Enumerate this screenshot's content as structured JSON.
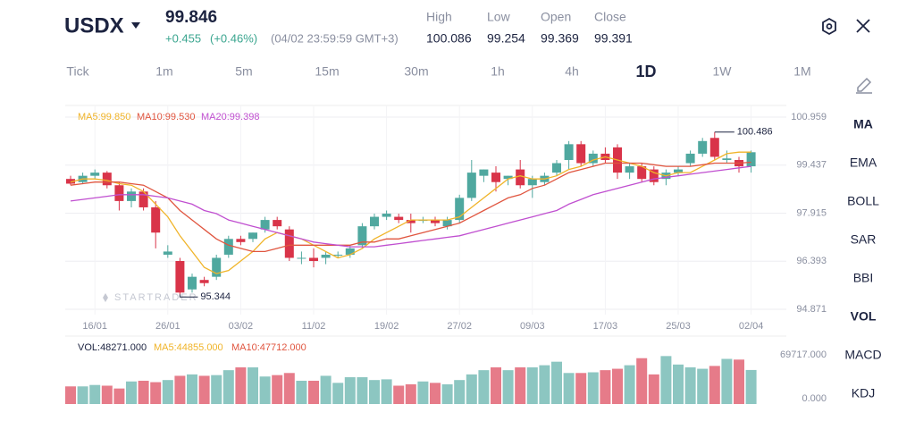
{
  "header": {
    "symbol": "USDX",
    "price": "99.846",
    "change": "+0.455",
    "change_pct": "(+0.46%)",
    "time": "(04/02 23:59:59 GMT+3)",
    "stats": [
      {
        "label": "High",
        "value": "100.086"
      },
      {
        "label": "Low",
        "value": "99.254"
      },
      {
        "label": "Open",
        "value": "99.369"
      },
      {
        "label": "Close",
        "value": "99.391"
      }
    ]
  },
  "timeframes": [
    "Tick",
    "1m",
    "5m",
    "15m",
    "30m",
    "1h",
    "4h",
    "1D",
    "1W",
    "1M"
  ],
  "selected_timeframe": "1D",
  "indicators": [
    "MA",
    "EMA",
    "BOLL",
    "SAR",
    "BBI",
    "VOL",
    "MACD",
    "KDJ"
  ],
  "active_indicators": [
    "MA",
    "VOL"
  ],
  "chart_data": [
    {
      "type": "candlestick",
      "watermark": "STARTRADER",
      "categories": [
        null,
        null,
        "16/01",
        null,
        null,
        null,
        null,
        null,
        "26/01",
        null,
        null,
        null,
        null,
        null,
        "03/02",
        null,
        null,
        null,
        null,
        null,
        "11/02",
        null,
        null,
        null,
        null,
        null,
        "19/02",
        null,
        null,
        null,
        null,
        null,
        "27/02",
        null,
        null,
        null,
        null,
        null,
        "09/03",
        null,
        null,
        null,
        null,
        null,
        "17/03",
        null,
        null,
        null,
        null,
        null,
        "25/03",
        null,
        null,
        null,
        null,
        null,
        "02/04"
      ],
      "open": [
        99.0,
        98.9,
        99.1,
        99.2,
        98.8,
        98.3,
        98.6,
        98.1,
        96.6,
        96.4,
        95.5,
        95.8,
        95.9,
        96.6,
        97.1,
        97.1,
        97.4,
        97.7,
        97.4,
        96.5,
        96.5,
        96.5,
        96.6,
        96.6,
        96.9,
        97.5,
        97.8,
        97.8,
        97.7,
        97.7,
        97.7,
        97.5,
        97.7,
        98.4,
        99.1,
        99.2,
        99.0,
        99.3,
        98.8,
        98.9,
        99.2,
        99.6,
        100.1,
        99.5,
        99.8,
        100.0,
        99.2,
        99.4,
        99.3,
        99.0,
        99.2,
        99.5,
        99.8,
        100.3,
        99.6,
        99.6,
        99.4
      ],
      "high": [
        99.1,
        99.2,
        99.3,
        99.25,
        98.9,
        98.7,
        98.7,
        98.3,
        96.9,
        96.5,
        96.0,
        95.9,
        96.6,
        97.2,
        97.2,
        97.3,
        97.8,
        97.8,
        97.5,
        96.7,
        96.8,
        96.7,
        96.7,
        96.9,
        97.6,
        97.9,
        98.0,
        97.9,
        97.9,
        97.8,
        97.8,
        97.8,
        98.5,
        99.6,
        99.3,
        99.4,
        99.1,
        99.6,
        99.1,
        99.2,
        99.6,
        100.2,
        100.2,
        99.9,
        100.0,
        100.1,
        99.5,
        99.5,
        99.4,
        99.3,
        99.4,
        99.9,
        100.3,
        100.486,
        99.9,
        99.7,
        99.9
      ],
      "low": [
        98.8,
        98.85,
        99.0,
        98.7,
        98.0,
        98.1,
        98.0,
        96.8,
        96.5,
        95.344,
        95.4,
        95.6,
        95.8,
        96.5,
        96.9,
        97.0,
        97.3,
        97.4,
        96.4,
        96.3,
        96.2,
        96.3,
        96.5,
        96.5,
        96.8,
        97.4,
        97.7,
        97.6,
        97.3,
        97.6,
        97.5,
        97.4,
        97.6,
        98.3,
        98.9,
        98.6,
        98.8,
        98.7,
        98.4,
        98.8,
        99.1,
        99.3,
        99.4,
        99.4,
        99.5,
        99.0,
        99.0,
        98.9,
        98.8,
        98.8,
        99.1,
        99.4,
        99.7,
        99.6,
        99.5,
        99.2,
        99.2
      ],
      "close": [
        98.85,
        99.1,
        99.2,
        98.8,
        98.3,
        98.6,
        98.1,
        97.3,
        96.7,
        95.4,
        95.9,
        95.7,
        96.5,
        97.1,
        97.0,
        97.3,
        97.7,
        97.5,
        96.5,
        96.5,
        96.4,
        96.6,
        96.6,
        96.8,
        97.5,
        97.8,
        97.9,
        97.7,
        97.6,
        97.7,
        97.6,
        97.7,
        98.4,
        99.2,
        99.3,
        98.9,
        99.1,
        98.8,
        99.0,
        99.1,
        99.5,
        100.1,
        99.5,
        99.8,
        99.6,
        99.2,
        99.4,
        99.0,
        98.9,
        99.2,
        99.3,
        99.8,
        100.2,
        99.7,
        99.65,
        99.4,
        99.846
      ],
      "up_color": "#4fa89f",
      "down_color": "#d93449",
      "series": [
        {
          "name": "MA5:99.850",
          "color": "#f0b429",
          "values": [
            98.9,
            99.0,
            99.0,
            98.95,
            98.85,
            98.8,
            98.6,
            98.2,
            97.8,
            97.2,
            96.7,
            96.2,
            96.0,
            96.1,
            96.4,
            96.7,
            97.1,
            97.3,
            97.2,
            97.1,
            96.9,
            96.7,
            96.5,
            96.6,
            96.8,
            97.1,
            97.3,
            97.5,
            97.7,
            97.7,
            97.7,
            97.7,
            97.8,
            98.1,
            98.4,
            98.7,
            99.0,
            99.1,
            99.0,
            99.0,
            99.1,
            99.3,
            99.4,
            99.6,
            99.7,
            99.6,
            99.5,
            99.4,
            99.2,
            99.1,
            99.2,
            99.2,
            99.4,
            99.6,
            99.8,
            99.85,
            99.85
          ]
        },
        {
          "name": "MA10:99.530",
          "color": "#e0553f",
          "values": [
            98.8,
            98.85,
            98.9,
            98.9,
            98.9,
            98.85,
            98.8,
            98.6,
            98.4,
            98.0,
            97.7,
            97.4,
            97.1,
            96.9,
            96.8,
            96.7,
            96.7,
            96.8,
            96.9,
            96.9,
            96.9,
            96.9,
            96.9,
            96.9,
            97.0,
            97.0,
            97.1,
            97.1,
            97.2,
            97.3,
            97.4,
            97.5,
            97.6,
            97.8,
            98.0,
            98.2,
            98.4,
            98.5,
            98.7,
            98.8,
            99.0,
            99.2,
            99.3,
            99.4,
            99.5,
            99.5,
            99.5,
            99.5,
            99.45,
            99.4,
            99.4,
            99.4,
            99.45,
            99.5,
            99.5,
            99.5,
            99.53
          ]
        },
        {
          "name": "MA20:99.398",
          "color": "#c04fd0",
          "values": [
            98.3,
            98.35,
            98.4,
            98.45,
            98.5,
            98.5,
            98.5,
            98.45,
            98.4,
            98.3,
            98.2,
            98.0,
            97.9,
            97.7,
            97.6,
            97.5,
            97.4,
            97.3,
            97.2,
            97.1,
            97.0,
            96.95,
            96.9,
            96.85,
            96.85,
            96.85,
            96.9,
            96.95,
            97.0,
            97.05,
            97.1,
            97.15,
            97.2,
            97.3,
            97.4,
            97.5,
            97.6,
            97.7,
            97.8,
            97.9,
            98.0,
            98.2,
            98.35,
            98.5,
            98.6,
            98.7,
            98.8,
            98.9,
            99.0,
            99.05,
            99.1,
            99.15,
            99.2,
            99.25,
            99.3,
            99.35,
            99.398
          ]
        }
      ],
      "ylim": [
        94.871,
        100.959
      ],
      "yticks": [
        100.959,
        99.437,
        97.915,
        96.393,
        94.871
      ],
      "grid": true
    },
    {
      "type": "bar",
      "legend": [
        {
          "text": "VOL:48271.000",
          "color": "#1c2340"
        },
        {
          "text": "MA5:44855.000",
          "color": "#f0b429"
        },
        {
          "text": "MA10:47712.000",
          "color": "#e0553f"
        }
      ],
      "values": [
        25000,
        25000,
        27000,
        26000,
        22000,
        32000,
        33000,
        31000,
        34000,
        40000,
        42000,
        40000,
        41000,
        48000,
        52000,
        52000,
        39000,
        41000,
        44000,
        33000,
        33000,
        40000,
        30000,
        38000,
        38000,
        34000,
        35000,
        26000,
        28000,
        32000,
        30000,
        28000,
        34000,
        42000,
        48000,
        52000,
        48000,
        52000,
        52000,
        55000,
        60000,
        44000,
        44000,
        45000,
        48000,
        50000,
        55000,
        65000,
        42000,
        68000,
        56000,
        52000,
        50000,
        54000,
        64000,
        63000,
        48271
      ],
      "ylim": [
        0,
        69717
      ],
      "yticks": [
        {
          "value": 69717,
          "label": "69717.000"
        },
        {
          "value": 0,
          "label": "0.000"
        }
      ]
    }
  ]
}
